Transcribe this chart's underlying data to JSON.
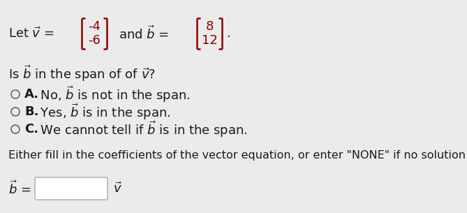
{
  "bg_color": "#ebebeb",
  "text_color": "#1a1a1a",
  "matrix_color": "#8B0000",
  "v1_top": "-4",
  "v1_bot": "-6",
  "b1_top": "8",
  "b1_bot": "12",
  "bold_label_a": "A.",
  "bold_label_b": "B.",
  "bold_label_c": "C.",
  "rest_a": " No, $\\vec{b}$ is not in the span.",
  "rest_b": " Yes, $\\vec{b}$ is in the span.",
  "rest_c": " We cannot tell if $\\vec{b}$ is in the span.",
  "line_eq": "Either fill in the coefficients of the vector equation, or enter \"NONE\" if no solution is possible."
}
